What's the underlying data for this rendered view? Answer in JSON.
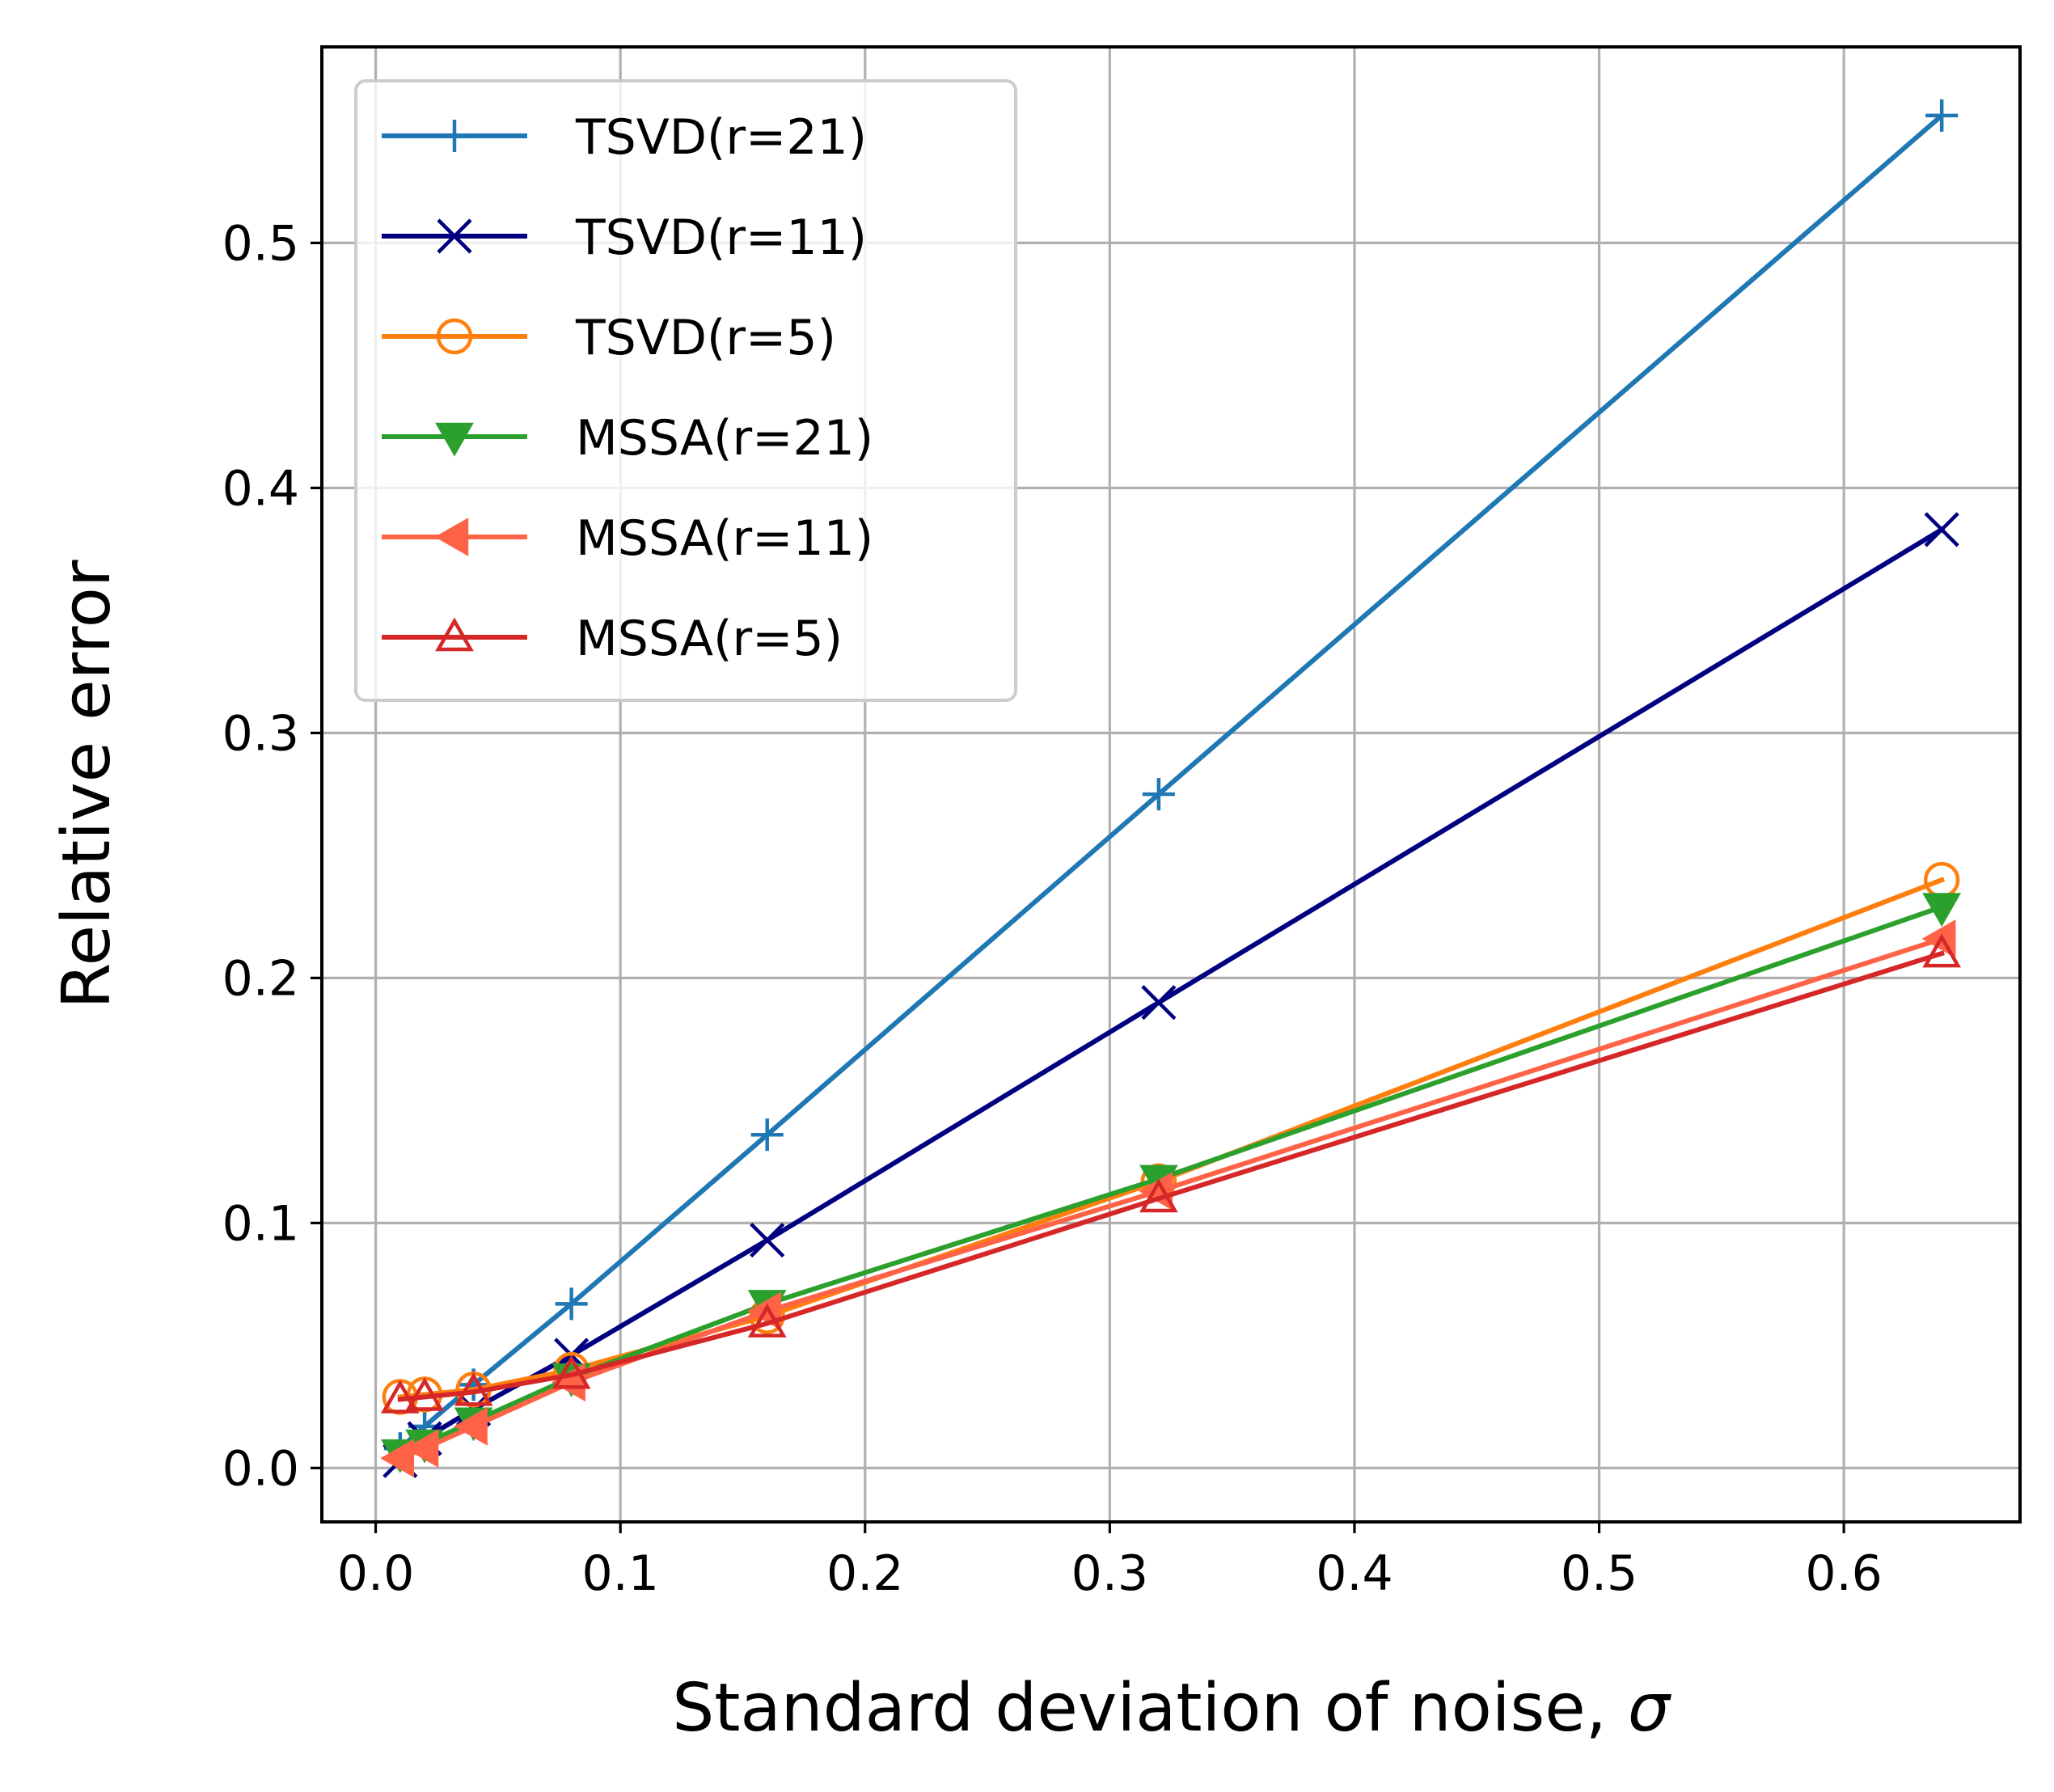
{
  "chart_data": {
    "type": "line",
    "title": "",
    "xlabel": "Standard deviation of noise, ",
    "xlabel_symbol": "σ",
    "ylabel": "Relative error",
    "xlim": [
      -0.022,
      0.672
    ],
    "ylim": [
      -0.022,
      0.58
    ],
    "grid": true,
    "legend_position": "top-left",
    "x_ticks": [
      {
        "value": 0.0,
        "label": "0.0"
      },
      {
        "value": 0.1,
        "label": "0.1"
      },
      {
        "value": 0.2,
        "label": "0.2"
      },
      {
        "value": 0.3,
        "label": "0.3"
      },
      {
        "value": 0.4,
        "label": "0.4"
      },
      {
        "value": 0.5,
        "label": "0.5"
      },
      {
        "value": 0.6,
        "label": "0.6"
      }
    ],
    "y_ticks": [
      {
        "value": 0.0,
        "label": "0.0"
      },
      {
        "value": 0.1,
        "label": "0.1"
      },
      {
        "value": 0.2,
        "label": "0.2"
      },
      {
        "value": 0.3,
        "label": "0.3"
      },
      {
        "value": 0.4,
        "label": "0.4"
      },
      {
        "value": 0.5,
        "label": "0.5"
      }
    ],
    "x": [
      0.01,
      0.02,
      0.04,
      0.08,
      0.16,
      0.32,
      0.64
    ],
    "series": [
      {
        "name": "TSVD(r=21)",
        "color": "#1f77b4",
        "marker": "plus",
        "values": [
          0.008,
          0.017,
          0.034,
          0.067,
          0.136,
          0.275,
          0.552
        ]
      },
      {
        "name": "TSVD(r=11)",
        "color": "#000080",
        "marker": "x",
        "values": [
          0.003,
          0.012,
          0.024,
          0.046,
          0.093,
          0.19,
          0.383
        ]
      },
      {
        "name": "TSVD(r=5)",
        "color": "#ff7f0e",
        "marker": "circle",
        "values": [
          0.029,
          0.03,
          0.032,
          0.04,
          0.062,
          0.117,
          0.24
        ]
      },
      {
        "name": "MSSA(r=21)",
        "color": "#2ca02c",
        "marker": "triangle-down",
        "values": [
          0.006,
          0.01,
          0.019,
          0.037,
          0.067,
          0.118,
          0.229
        ]
      },
      {
        "name": "MSSA(r=11)",
        "color": "#ff6347",
        "marker": "triangle-left",
        "values": [
          0.004,
          0.008,
          0.017,
          0.035,
          0.064,
          0.113,
          0.216
        ]
      },
      {
        "name": "MSSA(r=5)",
        "color": "#d62728",
        "marker": "triangle-up",
        "values": [
          0.028,
          0.029,
          0.031,
          0.038,
          0.059,
          0.11,
          0.21
        ]
      }
    ]
  }
}
